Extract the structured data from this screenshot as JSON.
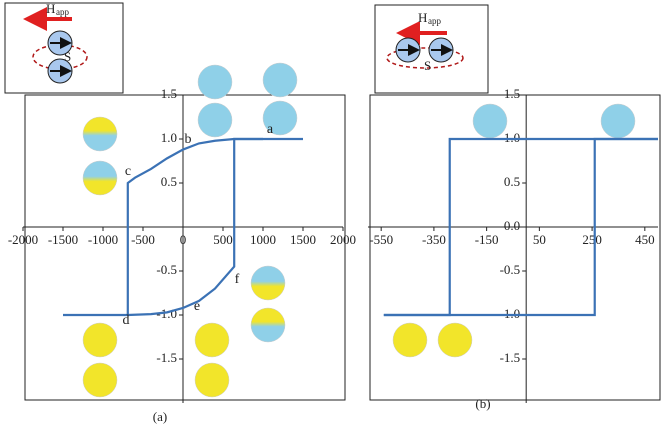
{
  "chart_data": [
    {
      "type": "line",
      "caption": "(a)",
      "inset": {
        "field_label": "H",
        "field_subscript": "app",
        "spacing_label": "S"
      },
      "annotations": [
        "a",
        "b",
        "c",
        "d",
        "e",
        "f"
      ],
      "xlim": [
        -2000,
        2000
      ],
      "ylim": [
        -2,
        1.5
      ],
      "xticks": [
        -2000,
        -1500,
        -1000,
        -500,
        0,
        500,
        1000,
        1500,
        2000
      ],
      "yticks": [
        1.5,
        {
          "value": 1,
          "label": "1.0"
        },
        0.5,
        -0.5,
        {
          "value": -1,
          "label": "-1.0"
        },
        -1.5
      ],
      "series": [
        {
          "color": "#3b72b5",
          "x": [
            1500,
            1000,
            640,
            400,
            200,
            0,
            -200,
            -400,
            -600,
            -690,
            -690,
            -1500
          ],
          "values": [
            1,
            1,
            1,
            0.98,
            0.95,
            0.88,
            0.78,
            0.66,
            0.56,
            0.5,
            -1,
            -1
          ]
        },
        {
          "color": "#3b72b5",
          "x": [
            -690,
            -400,
            -200,
            0,
            200,
            400,
            640,
            640,
            1000
          ],
          "values": [
            -1,
            -0.99,
            -0.97,
            -0.92,
            -0.84,
            -0.7,
            -0.45,
            1,
            1
          ]
        }
      ]
    },
    {
      "type": "line",
      "caption": "(b)",
      "inset": {
        "field_label": "H",
        "field_subscript": "app",
        "spacing_label": "S"
      },
      "xlim": [
        -600,
        500
      ],
      "ylim": [
        -2,
        1.5
      ],
      "xticks": [
        -550,
        -350,
        -150,
        50,
        250,
        450
      ],
      "yticks": [
        1.5,
        {
          "value": 1,
          "label": "1.0"
        },
        0.5,
        {
          "value": 0,
          "label": "0.0"
        },
        -0.5,
        {
          "value": -1,
          "label": "-1.0"
        },
        -1.5
      ],
      "series": [
        {
          "color": "#3b72b5",
          "x": [
            500,
            -290,
            -290,
            -540
          ],
          "values": [
            1,
            1,
            -1,
            -1
          ]
        },
        {
          "color": "#3b72b5",
          "x": [
            -540,
            260,
            260,
            500
          ],
          "values": [
            -1,
            -1,
            1,
            1
          ]
        }
      ]
    }
  ]
}
